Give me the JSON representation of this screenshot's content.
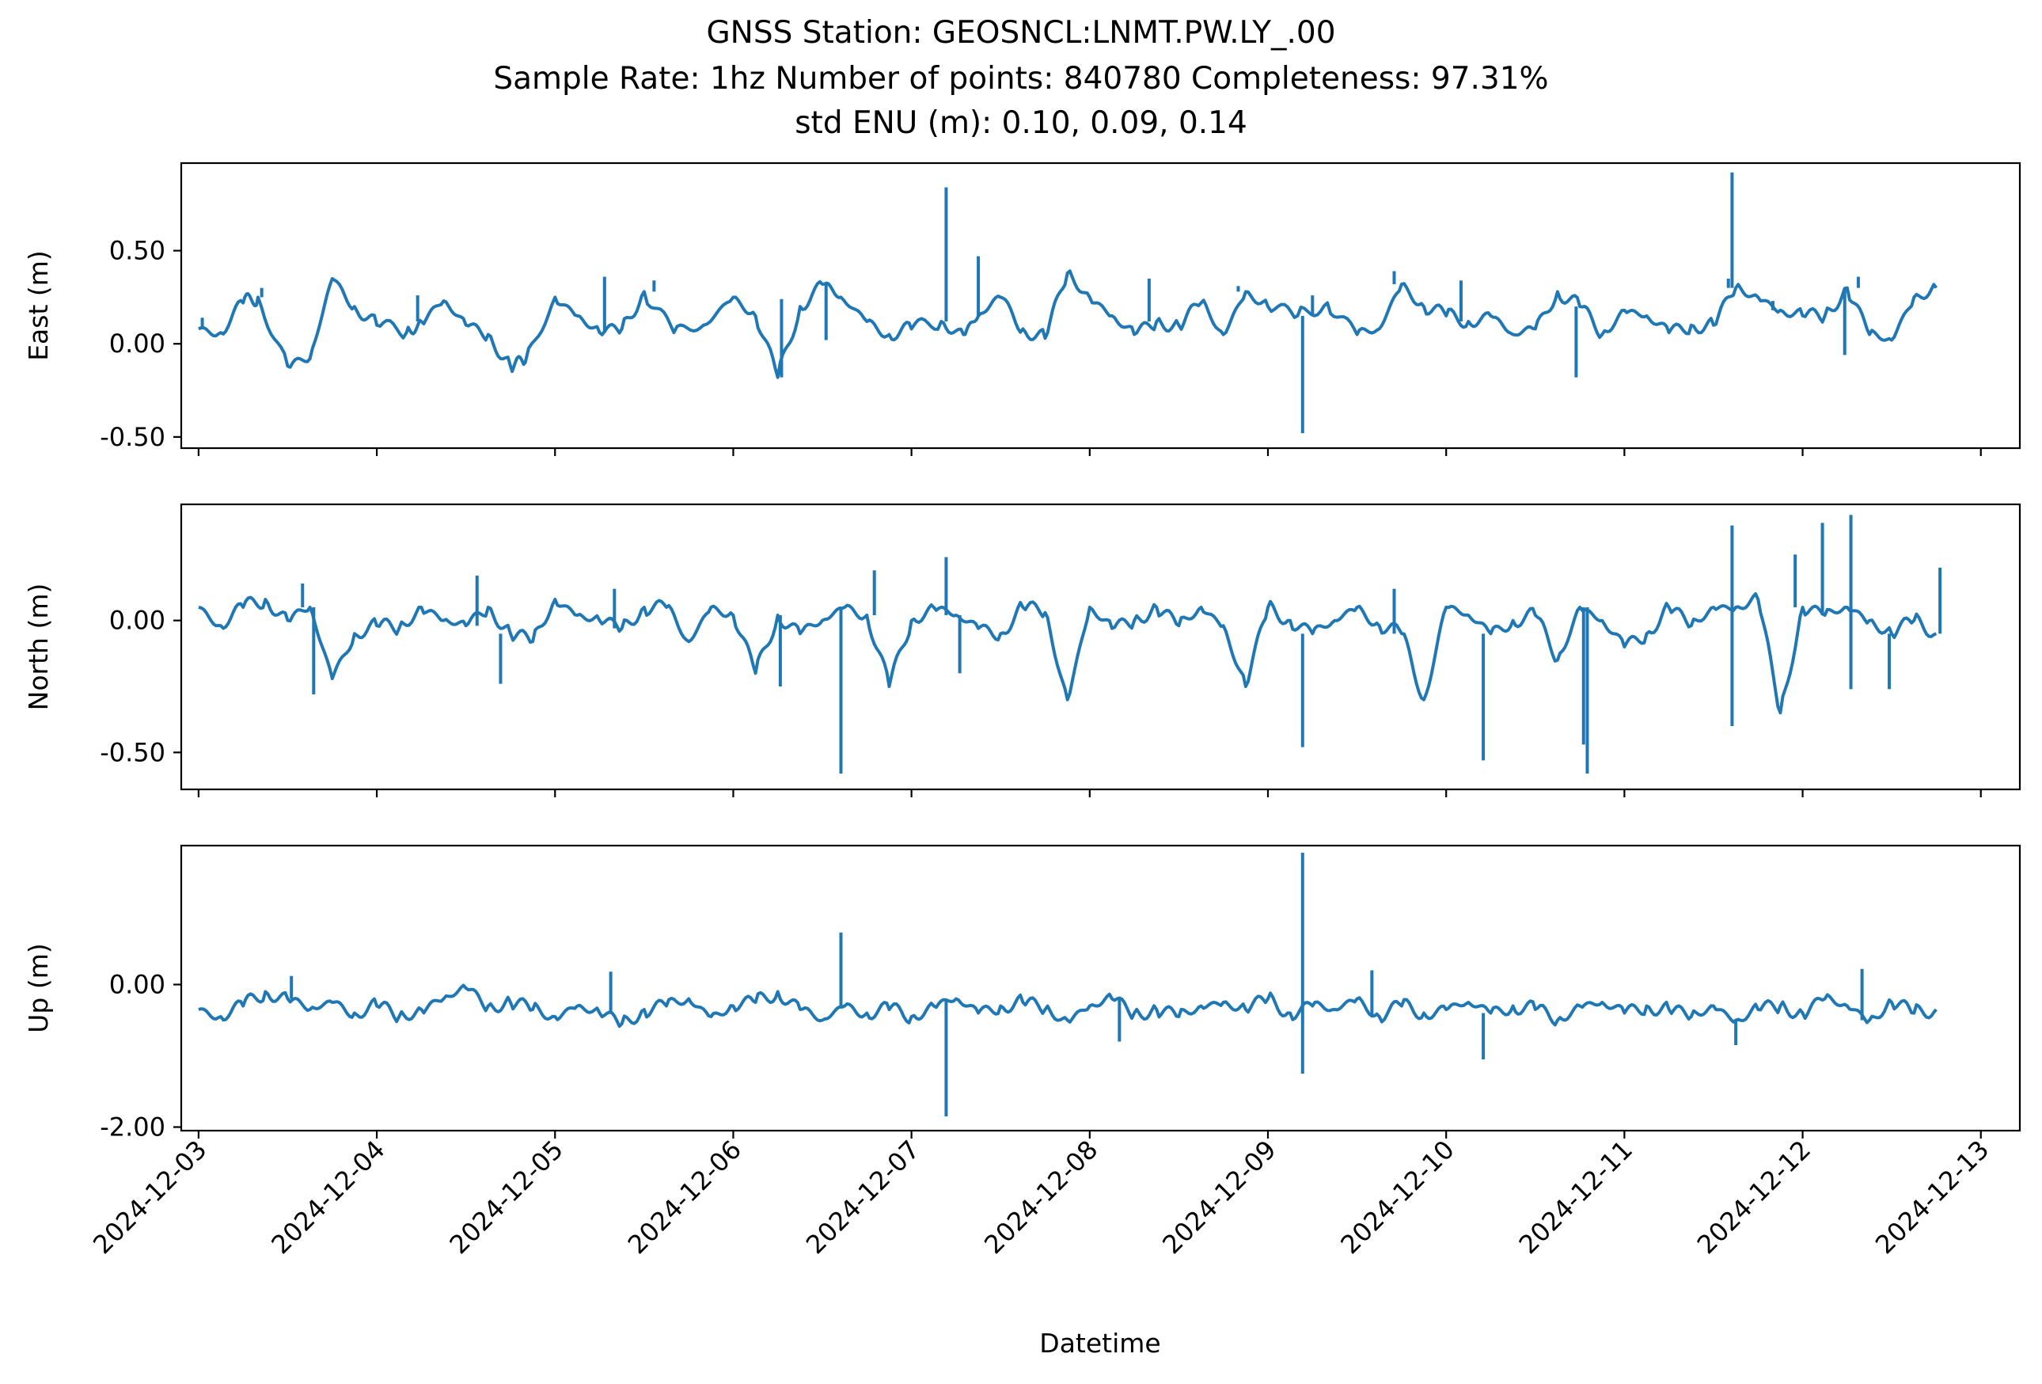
{
  "figure": {
    "title_lines": [
      "GNSS Station: GEOSNCL:LNMT.PW.LY_.00",
      "Sample Rate: 1hz   Number of points: 840780    Completeness:  97.31%",
      "std ENU (m):  0.10, 0.09, 0.14"
    ],
    "xlabel": "Datetime",
    "line_color": "#1f77b4"
  },
  "chart_data": {
    "type": "line",
    "title": "GNSS Station: GEOSNCL:LNMT.PW.LY_.00",
    "subtitle": [
      "Sample Rate: 1hz   Number of points: 840780    Completeness:  97.31%",
      "std ENU (m):  0.10, 0.09, 0.14"
    ],
    "xlabel": "Datetime",
    "x_tick_labels": [
      "2024-12-03",
      "2024-12-04",
      "2024-12-05",
      "2024-12-06",
      "2024-12-07",
      "2024-12-08",
      "2024-12-09",
      "2024-12-10",
      "2024-12-11",
      "2024-12-12",
      "2024-12-13"
    ],
    "xlim": [
      "2024-12-02T21:40",
      "2024-12-13T05:15"
    ],
    "grid": false,
    "legend": "none",
    "panels": [
      {
        "ylabel": "East (m)",
        "ylim": [
          -0.56,
          0.97
        ],
        "yticks": [
          0.5,
          0.0,
          -0.5
        ],
        "ytick_labels": [
          "0.50",
          "0.00",
          "-0.50"
        ],
        "series": [
          {
            "x": [
              "2024-12-03T00:00",
              "2024-12-03T03:00",
              "2024-12-03T06:00",
              "2024-12-03T08:00",
              "2024-12-03T12:00",
              "2024-12-03T15:00",
              "2024-12-03T18:00",
              "2024-12-03T21:00",
              "2024-12-04T00:00",
              "2024-12-04T04:00",
              "2024-12-04T06:00",
              "2024-12-04T09:00",
              "2024-12-04T12:00",
              "2024-12-04T15:00",
              "2024-12-04T18:00",
              "2024-12-04T20:00",
              "2024-12-05T00:00",
              "2024-12-05T03:00",
              "2024-12-05T06:00",
              "2024-12-05T09:00",
              "2024-12-05T12:00",
              "2024-12-05T16:00",
              "2024-12-05T20:00",
              "2024-12-06T00:00",
              "2024-12-06T03:00",
              "2024-12-06T06:00",
              "2024-12-06T09:00",
              "2024-12-06T12:00",
              "2024-12-06T14:30",
              "2024-12-06T18:00",
              "2024-12-06T21:00",
              "2024-12-07T00:00",
              "2024-12-07T04:00",
              "2024-12-07T07:00",
              "2024-12-07T09:00",
              "2024-12-07T12:00",
              "2024-12-07T15:00",
              "2024-12-07T18:00",
              "2024-12-07T21:00",
              "2024-12-08T00:00",
              "2024-12-08T03:00",
              "2024-12-08T06:00",
              "2024-12-08T09:00",
              "2024-12-08T12:00",
              "2024-12-08T15:00",
              "2024-12-08T18:00",
              "2024-12-08T21:00",
              "2024-12-09T00:00",
              "2024-12-09T04:00",
              "2024-12-09T08:00",
              "2024-12-09T12:00",
              "2024-12-09T15:00",
              "2024-12-09T18:00",
              "2024-12-09T21:00",
              "2024-12-10T00:00",
              "2024-12-10T03:00",
              "2024-12-10T06:00",
              "2024-12-10T09:00",
              "2024-12-10T12:00",
              "2024-12-10T15:00",
              "2024-12-10T18:00",
              "2024-12-10T21:00",
              "2024-12-11T00:00",
              "2024-12-11T03:00",
              "2024-12-11T06:00",
              "2024-12-11T09:00",
              "2024-12-11T12:00",
              "2024-12-11T15:00",
              "2024-12-11T18:00",
              "2024-12-11T21:00",
              "2024-12-12T00:00",
              "2024-12-12T03:00",
              "2024-12-12T06:00",
              "2024-12-12T09:00",
              "2024-12-12T12:00",
              "2024-12-12T15:00",
              "2024-12-12T18:00"
            ],
            "y": [
              0.08,
              0.06,
              0.22,
              0.25,
              -0.12,
              -0.08,
              0.35,
              0.2,
              0.1,
              0.06,
              0.12,
              0.23,
              0.1,
              0.05,
              -0.12,
              -0.1,
              0.25,
              0.15,
              0.06,
              0.08,
              0.28,
              0.06,
              0.1,
              0.25,
              0.15,
              -0.18,
              0.2,
              0.32,
              0.25,
              0.12,
              0.05,
              0.08,
              0.12,
              0.05,
              0.15,
              0.25,
              0.08,
              0.03,
              0.38,
              0.25,
              0.15,
              0.05,
              0.12,
              0.1,
              0.22,
              0.05,
              0.28,
              0.2,
              0.15,
              0.22,
              0.05,
              0.08,
              0.32,
              0.2,
              0.15,
              0.12,
              0.15,
              0.05,
              0.08,
              0.28,
              0.2,
              0.05,
              0.18,
              0.15,
              0.06,
              0.1,
              0.1,
              0.3,
              0.25,
              0.18,
              0.15,
              0.15,
              0.3,
              0.05,
              0.02,
              0.25,
              0.3
            ]
          }
        ],
        "spikes": [
          {
            "x": "2024-12-03T00:30",
            "y": 0.14
          },
          {
            "x": "2024-12-03T08:30",
            "y": 0.3
          },
          {
            "x": "2024-12-04T05:30",
            "y": 0.26
          },
          {
            "x": "2024-12-05T06:40",
            "y": 0.36
          },
          {
            "x": "2024-12-05T13:20",
            "y": 0.34
          },
          {
            "x": "2024-12-06T06:30",
            "y": 0.24
          },
          {
            "x": "2024-12-06T12:30",
            "y": 0.02
          },
          {
            "x": "2024-12-07T04:40",
            "y": 0.84
          },
          {
            "x": "2024-12-07T09:00",
            "y": 0.47
          },
          {
            "x": "2024-12-08T08:00",
            "y": 0.35
          },
          {
            "x": "2024-12-08T20:00",
            "y": 0.31
          },
          {
            "x": "2024-12-09T04:40",
            "y": -0.48
          },
          {
            "x": "2024-12-09T06:00",
            "y": 0.26
          },
          {
            "x": "2024-12-09T17:00",
            "y": 0.39
          },
          {
            "x": "2024-12-10T02:00",
            "y": 0.34
          },
          {
            "x": "2024-12-10T17:30",
            "y": -0.18
          },
          {
            "x": "2024-12-11T14:00",
            "y": 0.35
          },
          {
            "x": "2024-12-11T14:30",
            "y": 0.92
          },
          {
            "x": "2024-12-11T20:00",
            "y": 0.23
          },
          {
            "x": "2024-12-12T05:40",
            "y": -0.06
          },
          {
            "x": "2024-12-12T07:30",
            "y": 0.36
          }
        ]
      },
      {
        "ylabel": "North (m)",
        "ylim": [
          -0.64,
          0.44
        ],
        "yticks": [
          0.0,
          -0.5
        ],
        "ytick_labels": [
          "0.00",
          "-0.50"
        ],
        "series": [
          {
            "x": [
              "2024-12-03T00:00",
              "2024-12-03T03:00",
              "2024-12-03T06:00",
              "2024-12-03T09:00",
              "2024-12-03T12:00",
              "2024-12-03T15:00",
              "2024-12-03T18:00",
              "2024-12-03T21:00",
              "2024-12-04T00:00",
              "2024-12-04T03:00",
              "2024-12-04T06:00",
              "2024-12-04T09:00",
              "2024-12-04T12:00",
              "2024-12-04T15:00",
              "2024-12-04T18:00",
              "2024-12-04T21:00",
              "2024-12-05T00:00",
              "2024-12-05T03:00",
              "2024-12-05T06:00",
              "2024-12-05T09:00",
              "2024-12-05T12:00",
              "2024-12-05T15:00",
              "2024-12-05T18:00",
              "2024-12-05T21:00",
              "2024-12-06T00:00",
              "2024-12-06T03:00",
              "2024-12-06T06:00",
              "2024-12-06T09:00",
              "2024-12-06T12:00",
              "2024-12-06T15:00",
              "2024-12-06T18:00",
              "2024-12-06T21:00",
              "2024-12-07T00:00",
              "2024-12-07T03:00",
              "2024-12-07T06:00",
              "2024-12-07T09:00",
              "2024-12-07T12:00",
              "2024-12-07T15:00",
              "2024-12-07T18:00",
              "2024-12-07T21:00",
              "2024-12-08T00:00",
              "2024-12-08T03:00",
              "2024-12-08T06:00",
              "2024-12-08T09:00",
              "2024-12-08T12:00",
              "2024-12-08T15:00",
              "2024-12-08T18:00",
              "2024-12-08T21:00",
              "2024-12-09T00:00",
              "2024-12-09T03:00",
              "2024-12-09T06:00",
              "2024-12-09T09:00",
              "2024-12-09T12:00",
              "2024-12-09T15:00",
              "2024-12-09T18:00",
              "2024-12-09T21:00",
              "2024-12-10T00:00",
              "2024-12-10T03:00",
              "2024-12-10T06:00",
              "2024-12-10T09:00",
              "2024-12-10T12:00",
              "2024-12-10T15:00",
              "2024-12-10T18:00",
              "2024-12-10T21:00",
              "2024-12-11T00:00",
              "2024-12-11T03:00",
              "2024-12-11T06:00",
              "2024-12-11T09:00",
              "2024-12-11T12:00",
              "2024-12-11T15:00",
              "2024-12-11T18:00",
              "2024-12-11T21:00",
              "2024-12-12T00:00",
              "2024-12-12T03:00",
              "2024-12-12T06:00",
              "2024-12-12T09:00",
              "2024-12-12T12:00",
              "2024-12-12T15:00",
              "2024-12-12T18:00"
            ],
            "y": [
              0.05,
              -0.02,
              0.05,
              0.08,
              0.0,
              0.05,
              -0.22,
              -0.05,
              -0.02,
              -0.03,
              0.05,
              0.0,
              -0.02,
              0.05,
              -0.05,
              -0.08,
              0.08,
              0.02,
              0.0,
              -0.03,
              0.05,
              0.05,
              -0.08,
              0.05,
              0.02,
              -0.2,
              0.02,
              -0.05,
              0.0,
              0.05,
              0.02,
              -0.25,
              0.0,
              0.05,
              0.02,
              -0.03,
              -0.05,
              0.05,
              0.03,
              -0.3,
              0.05,
              -0.03,
              0.0,
              0.05,
              -0.02,
              0.05,
              -0.02,
              -0.25,
              0.05,
              0.0,
              -0.05,
              0.0,
              0.05,
              -0.02,
              -0.05,
              -0.3,
              0.05,
              0.02,
              -0.05,
              0.0,
              0.02,
              -0.15,
              0.05,
              0.0,
              -0.1,
              -0.05,
              0.05,
              -0.02,
              0.05,
              0.05,
              0.08,
              -0.35,
              0.05,
              0.02,
              0.05,
              0.0,
              -0.05,
              0.0,
              -0.05
            ]
          }
        ],
        "spikes": [
          {
            "x": "2024-12-03T14:00",
            "y": 0.14
          },
          {
            "x": "2024-12-03T15:30",
            "y": -0.28
          },
          {
            "x": "2024-12-04T13:30",
            "y": 0.17
          },
          {
            "x": "2024-12-04T16:40",
            "y": -0.24
          },
          {
            "x": "2024-12-05T08:00",
            "y": 0.12
          },
          {
            "x": "2024-12-06T06:20",
            "y": -0.25
          },
          {
            "x": "2024-12-06T14:30",
            "y": -0.58
          },
          {
            "x": "2024-12-06T19:00",
            "y": 0.19
          },
          {
            "x": "2024-12-07T04:40",
            "y": 0.24
          },
          {
            "x": "2024-12-07T06:30",
            "y": -0.2
          },
          {
            "x": "2024-12-09T04:40",
            "y": -0.48
          },
          {
            "x": "2024-12-09T17:00",
            "y": 0.12
          },
          {
            "x": "2024-12-10T05:00",
            "y": -0.53
          },
          {
            "x": "2024-12-10T18:30",
            "y": -0.47
          },
          {
            "x": "2024-12-10T19:00",
            "y": -0.58
          },
          {
            "x": "2024-12-11T14:30",
            "y": 0.36
          },
          {
            "x": "2024-12-11T14:30",
            "y": -0.4
          },
          {
            "x": "2024-12-11T23:00",
            "y": 0.25
          },
          {
            "x": "2024-12-12T02:40",
            "y": 0.37
          },
          {
            "x": "2024-12-12T06:30",
            "y": 0.4
          },
          {
            "x": "2024-12-12T06:30",
            "y": -0.26
          },
          {
            "x": "2024-12-12T11:40",
            "y": -0.26
          },
          {
            "x": "2024-12-12T18:30",
            "y": 0.2
          }
        ]
      },
      {
        "ylabel": "Up (m)",
        "ylim": [
          -2.05,
          1.95
        ],
        "yticks": [
          0.0,
          -2.0
        ],
        "ytick_labels": [
          "0.00",
          "-2.00"
        ],
        "series": [
          {
            "x": [
              "2024-12-03T00:00",
              "2024-12-03T03:00",
              "2024-12-03T06:00",
              "2024-12-03T09:00",
              "2024-12-03T12:00",
              "2024-12-03T15:00",
              "2024-12-03T18:00",
              "2024-12-03T21:00",
              "2024-12-04T00:00",
              "2024-12-04T03:00",
              "2024-12-04T06:00",
              "2024-12-04T09:00",
              "2024-12-04T12:00",
              "2024-12-04T15:00",
              "2024-12-04T18:00",
              "2024-12-04T21:00",
              "2024-12-05T00:00",
              "2024-12-05T03:00",
              "2024-12-05T06:00",
              "2024-12-05T09:00",
              "2024-12-05T12:00",
              "2024-12-05T15:00",
              "2024-12-05T18:00",
              "2024-12-05T21:00",
              "2024-12-06T00:00",
              "2024-12-06T03:00",
              "2024-12-06T06:00",
              "2024-12-06T09:00",
              "2024-12-06T12:00",
              "2024-12-06T15:00",
              "2024-12-06T18:00",
              "2024-12-06T21:00",
              "2024-12-07T00:00",
              "2024-12-07T03:00",
              "2024-12-07T06:00",
              "2024-12-07T09:00",
              "2024-12-07T12:00",
              "2024-12-07T15:00",
              "2024-12-07T18:00",
              "2024-12-07T21:00",
              "2024-12-08T00:00",
              "2024-12-08T03:00",
              "2024-12-08T06:00",
              "2024-12-08T09:00",
              "2024-12-08T12:00",
              "2024-12-08T15:00",
              "2024-12-08T18:00",
              "2024-12-08T21:00",
              "2024-12-09T00:00",
              "2024-12-09T03:00",
              "2024-12-09T06:00",
              "2024-12-09T09:00",
              "2024-12-09T12:00",
              "2024-12-09T15:00",
              "2024-12-09T18:00",
              "2024-12-09T21:00",
              "2024-12-10T00:00",
              "2024-12-10T03:00",
              "2024-12-10T06:00",
              "2024-12-10T09:00",
              "2024-12-10T12:00",
              "2024-12-10T15:00",
              "2024-12-10T18:00",
              "2024-12-10T21:00",
              "2024-12-11T00:00",
              "2024-12-11T03:00",
              "2024-12-11T06:00",
              "2024-12-11T09:00",
              "2024-12-11T12:00",
              "2024-12-11T15:00",
              "2024-12-11T18:00",
              "2024-12-11T21:00",
              "2024-12-12T00:00",
              "2024-12-12T03:00",
              "2024-12-12T06:00",
              "2024-12-12T09:00",
              "2024-12-12T12:00",
              "2024-12-12T15:00",
              "2024-12-12T18:00"
            ],
            "y": [
              -0.35,
              -0.45,
              -0.3,
              -0.1,
              -0.2,
              -0.35,
              -0.25,
              -0.4,
              -0.3,
              -0.45,
              -0.35,
              -0.2,
              -0.05,
              -0.3,
              -0.25,
              -0.35,
              -0.45,
              -0.3,
              -0.4,
              -0.55,
              -0.35,
              -0.3,
              -0.2,
              -0.45,
              -0.3,
              -0.25,
              -0.1,
              -0.35,
              -0.5,
              -0.3,
              -0.4,
              -0.35,
              -0.45,
              -0.3,
              -0.2,
              -0.4,
              -0.3,
              -0.25,
              -0.35,
              -0.5,
              -0.3,
              -0.2,
              -0.4,
              -0.35,
              -0.45,
              -0.3,
              -0.25,
              -0.35,
              -0.2,
              -0.4,
              -0.3,
              -0.35,
              -0.2,
              -0.45,
              -0.3,
              -0.4,
              -0.35,
              -0.25,
              -0.4,
              -0.3,
              -0.35,
              -0.5,
              -0.3,
              -0.25,
              -0.4,
              -0.3,
              -0.35,
              -0.45,
              -0.3,
              -0.5,
              -0.35,
              -0.3,
              -0.4,
              -0.2,
              -0.3,
              -0.5,
              -0.25,
              -0.4,
              -0.35
            ]
          }
        ],
        "spikes": [
          {
            "x": "2024-12-03T12:30",
            "y": 0.12
          },
          {
            "x": "2024-12-05T07:30",
            "y": 0.18
          },
          {
            "x": "2024-12-06T14:30",
            "y": 0.73
          },
          {
            "x": "2024-12-07T04:40",
            "y": -1.85
          },
          {
            "x": "2024-12-08T04:00",
            "y": -0.8
          },
          {
            "x": "2024-12-09T04:40",
            "y": 1.85
          },
          {
            "x": "2024-12-09T04:40",
            "y": -1.25
          },
          {
            "x": "2024-12-09T14:00",
            "y": 0.2
          },
          {
            "x": "2024-12-10T05:00",
            "y": -1.05
          },
          {
            "x": "2024-12-11T15:00",
            "y": -0.85
          },
          {
            "x": "2024-12-12T08:00",
            "y": 0.22
          }
        ]
      }
    ]
  }
}
